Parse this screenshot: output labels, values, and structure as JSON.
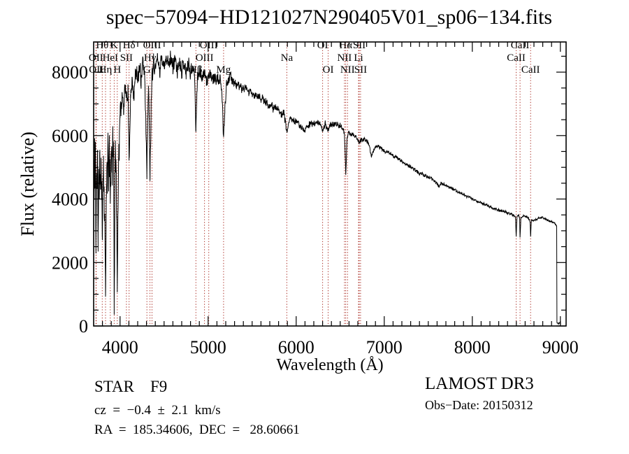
{
  "figure": {
    "title": "spec−57094−HD121027N290405V01_sp06−134.fits",
    "footer_left": {
      "class_line": "STAR    F9",
      "cz_line": "cz  =  −0.4  ±  2.1  km/s",
      "radec_line": "RA  =  185.34606,  DEC  =   28.60661"
    },
    "footer_right": {
      "survey_line": "LAMOST DR3",
      "obsdate_line": "Obs−Date: 20150312"
    }
  },
  "chart_data": {
    "type": "line",
    "title": "spec−57094−HD121027N290405V01_sp06−134.fits",
    "xlabel": "Wavelength (Å)",
    "ylabel": "Flux (relative)",
    "xlim": [
      3700,
      9065
    ],
    "ylim": [
      0,
      8950
    ],
    "x_major_ticks": [
      4000,
      5000,
      6000,
      7000,
      8000,
      9000
    ],
    "x_tick_labels": [
      "4000",
      "5000",
      "6000",
      "7000",
      "8000",
      "9000"
    ],
    "x_minor_step": 100,
    "y_major_ticks": [
      0,
      2000,
      4000,
      6000,
      8000
    ],
    "y_tick_labels": [
      "0",
      "2000",
      "4000",
      "6000",
      "8000"
    ],
    "y_minor_step": 500,
    "grid": false,
    "legend": null,
    "series_color": "#000000",
    "marker_line_color": "#aa2b22",
    "line_markers": [
      {
        "label": "OII",
        "wl": 3726,
        "row": 2
      },
      {
        "label": "OII",
        "wl": 3729,
        "row": 3
      },
      {
        "label": "Hθ",
        "wl": 3798,
        "row": 1
      },
      {
        "label": "Hη",
        "wl": 3835,
        "row": 3
      },
      {
        "label": "HeI",
        "wl": 3889,
        "row": 2
      },
      {
        "label": "K",
        "wl": 3933,
        "row": 1
      },
      {
        "label": "H",
        "wl": 3968,
        "row": 3
      },
      {
        "label": "SII",
        "wl": 4072,
        "row": 2
      },
      {
        "label": "Hδ",
        "wl": 4102,
        "row": 1
      },
      {
        "label": "G",
        "wl": 4305,
        "row": 3
      },
      {
        "label": "Hγ",
        "wl": 4340,
        "row": 2
      },
      {
        "label": "OIII",
        "wl": 4363,
        "row": 1
      },
      {
        "label": "Hβ",
        "wl": 4861,
        "row": 3
      },
      {
        "label": "OIII",
        "wl": 4959,
        "row": 2
      },
      {
        "label": "OIII",
        "wl": 5007,
        "row": 1
      },
      {
        "label": "Mg",
        "wl": 5175,
        "row": 3
      },
      {
        "label": "Na",
        "wl": 5894,
        "row": 2
      },
      {
        "label": "OI",
        "wl": 6300,
        "row": 1
      },
      {
        "label": "OI",
        "wl": 6363,
        "row": 3
      },
      {
        "label": "NII",
        "wl": 6548,
        "row": 2
      },
      {
        "label": "Hα",
        "wl": 6563,
        "row": 1
      },
      {
        "label": "NII",
        "wl": 6583,
        "row": 3
      },
      {
        "label": "Li",
        "wl": 6708,
        "row": 2
      },
      {
        "label": "SII",
        "wl": 6716,
        "row": 1
      },
      {
        "label": "SII",
        "wl": 6731,
        "row": 3
      },
      {
        "label": "CaII",
        "wl": 8498,
        "row": 2
      },
      {
        "label": "CaII",
        "wl": 8542,
        "row": 1
      },
      {
        "label": "CaII",
        "wl": 8662,
        "row": 3
      }
    ],
    "spectrum": {
      "noise_seed": 11,
      "sample_step_angstrom": 2.2,
      "noise_segments": [
        [
          3700,
          4000,
          850
        ],
        [
          4000,
          4380,
          420
        ],
        [
          4380,
          4900,
          300
        ],
        [
          4900,
          5300,
          230
        ],
        [
          5300,
          5900,
          170
        ],
        [
          5900,
          6560,
          110
        ],
        [
          6560,
          6900,
          90
        ],
        [
          6900,
          7600,
          70
        ],
        [
          7600,
          8480,
          55
        ],
        [
          8480,
          8958,
          42
        ],
        [
          8958,
          9003,
          22
        ]
      ],
      "anchors": [
        [
          3700,
          250
        ],
        [
          3702,
          5200
        ],
        [
          3706,
          3600
        ],
        [
          3711,
          5800
        ],
        [
          3716,
          4200
        ],
        [
          3721,
          5500
        ],
        [
          3726,
          2750
        ],
        [
          3733,
          5000
        ],
        [
          3739,
          4100
        ],
        [
          3745,
          5600
        ],
        [
          3751,
          2300
        ],
        [
          3757,
          4900
        ],
        [
          3764,
          4000
        ],
        [
          3771,
          5500
        ],
        [
          3778,
          4300
        ],
        [
          3785,
          5300
        ],
        [
          3792,
          4100
        ],
        [
          3798,
          3000
        ],
        [
          3805,
          4500
        ],
        [
          3812,
          5200
        ],
        [
          3820,
          4000
        ],
        [
          3828,
          2800
        ],
        [
          3835,
          900
        ],
        [
          3842,
          3600
        ],
        [
          3849,
          5200
        ],
        [
          3856,
          4500
        ],
        [
          3863,
          5400
        ],
        [
          3871,
          4600
        ],
        [
          3879,
          5500
        ],
        [
          3885,
          4700
        ],
        [
          3889,
          3700
        ],
        [
          3896,
          5100
        ],
        [
          3904,
          5700
        ],
        [
          3912,
          4800
        ],
        [
          3919,
          5900
        ],
        [
          3926,
          5200
        ],
        [
          3930,
          3800
        ],
        [
          3933,
          650
        ],
        [
          3938,
          2600
        ],
        [
          3944,
          4800
        ],
        [
          3950,
          5500
        ],
        [
          3957,
          4900
        ],
        [
          3962,
          3700
        ],
        [
          3968,
          1150
        ],
        [
          3975,
          3300
        ],
        [
          3983,
          5300
        ],
        [
          3991,
          6000
        ],
        [
          4000,
          6700
        ],
        [
          4020,
          7200
        ],
        [
          4040,
          6900
        ],
        [
          4060,
          7500
        ],
        [
          4075,
          7000
        ],
        [
          4090,
          7600
        ],
        [
          4102,
          5250
        ],
        [
          4118,
          7100
        ],
        [
          4140,
          7800
        ],
        [
          4160,
          7300
        ],
        [
          4180,
          8100
        ],
        [
          4200,
          7600
        ],
        [
          4220,
          8200
        ],
        [
          4240,
          7800
        ],
        [
          4260,
          8300
        ],
        [
          4280,
          7900
        ],
        [
          4305,
          5000
        ],
        [
          4322,
          7700
        ],
        [
          4340,
          4900
        ],
        [
          4360,
          7900
        ],
        [
          4375,
          8300
        ],
        [
          4400,
          8100
        ],
        [
          4425,
          8500
        ],
        [
          4450,
          8000
        ],
        [
          4475,
          8550
        ],
        [
          4500,
          8150
        ],
        [
          4525,
          8600
        ],
        [
          4550,
          8200
        ],
        [
          4575,
          8500
        ],
        [
          4600,
          8100
        ],
        [
          4625,
          8450
        ],
        [
          4650,
          8000
        ],
        [
          4675,
          8400
        ],
        [
          4700,
          8050
        ],
        [
          4725,
          8350
        ],
        [
          4750,
          7950
        ],
        [
          4775,
          8300
        ],
        [
          4800,
          8000
        ],
        [
          4825,
          8200
        ],
        [
          4845,
          7900
        ],
        [
          4861,
          6200
        ],
        [
          4880,
          7900
        ],
        [
          4905,
          8100
        ],
        [
          4930,
          7800
        ],
        [
          4955,
          8000
        ],
        [
          4980,
          7700
        ],
        [
          5007,
          7900
        ],
        [
          5030,
          7850
        ],
        [
          5060,
          7800
        ],
        [
          5100,
          7800
        ],
        [
          5140,
          7700
        ],
        [
          5160,
          7200
        ],
        [
          5175,
          5850
        ],
        [
          5190,
          6900
        ],
        [
          5210,
          7700
        ],
        [
          5240,
          7850
        ],
        [
          5270,
          7800
        ],
        [
          5320,
          7600
        ],
        [
          5380,
          7500
        ],
        [
          5430,
          7450
        ],
        [
          5500,
          7300
        ],
        [
          5590,
          7200
        ],
        [
          5680,
          7000
        ],
        [
          5750,
          6870
        ],
        [
          5820,
          6750
        ],
        [
          5860,
          6700
        ],
        [
          5894,
          6150
        ],
        [
          5930,
          6550
        ],
        [
          5990,
          6450
        ],
        [
          6050,
          6300
        ],
        [
          6090,
          6150
        ],
        [
          6150,
          6350
        ],
        [
          6210,
          6400
        ],
        [
          6270,
          6400
        ],
        [
          6300,
          6150
        ],
        [
          6330,
          6380
        ],
        [
          6363,
          6150
        ],
        [
          6395,
          6380
        ],
        [
          6430,
          6330
        ],
        [
          6470,
          6360
        ],
        [
          6510,
          6280
        ],
        [
          6548,
          6050
        ],
        [
          6563,
          4800
        ],
        [
          6578,
          5950
        ],
        [
          6600,
          6080
        ],
        [
          6640,
          6020
        ],
        [
          6680,
          5960
        ],
        [
          6708,
          5820
        ],
        [
          6716,
          5780
        ],
        [
          6731,
          5840
        ],
        [
          6780,
          5880
        ],
        [
          6820,
          5780
        ],
        [
          6858,
          5350
        ],
        [
          6880,
          5550
        ],
        [
          6905,
          5680
        ],
        [
          6950,
          5620
        ],
        [
          7000,
          5520
        ],
        [
          7050,
          5460
        ],
        [
          7100,
          5370
        ],
        [
          7150,
          5300
        ],
        [
          7200,
          5170
        ],
        [
          7250,
          5110
        ],
        [
          7300,
          5010
        ],
        [
          7350,
          4920
        ],
        [
          7400,
          4810
        ],
        [
          7450,
          4760
        ],
        [
          7500,
          4680
        ],
        [
          7550,
          4620
        ],
        [
          7600,
          4480
        ],
        [
          7620,
          4420
        ],
        [
          7650,
          4500
        ],
        [
          7700,
          4430
        ],
        [
          7750,
          4360
        ],
        [
          7800,
          4290
        ],
        [
          7850,
          4210
        ],
        [
          7900,
          4130
        ],
        [
          7950,
          4070
        ],
        [
          8000,
          4010
        ],
        [
          8060,
          3930
        ],
        [
          8120,
          3850
        ],
        [
          8180,
          3790
        ],
        [
          8240,
          3710
        ],
        [
          8300,
          3650
        ],
        [
          8360,
          3620
        ],
        [
          8420,
          3540
        ],
        [
          8460,
          3500
        ],
        [
          8490,
          3430
        ],
        [
          8498,
          2830
        ],
        [
          8508,
          3450
        ],
        [
          8525,
          3480
        ],
        [
          8538,
          3350
        ],
        [
          8542,
          2790
        ],
        [
          8552,
          3420
        ],
        [
          8580,
          3480
        ],
        [
          8610,
          3450
        ],
        [
          8640,
          3380
        ],
        [
          8656,
          3300
        ],
        [
          8662,
          2830
        ],
        [
          8672,
          3350
        ],
        [
          8700,
          3320
        ],
        [
          8730,
          3360
        ],
        [
          8760,
          3400
        ],
        [
          8790,
          3420
        ],
        [
          8820,
          3380
        ],
        [
          8850,
          3340
        ],
        [
          8880,
          3300
        ],
        [
          8910,
          3270
        ],
        [
          8935,
          3240
        ],
        [
          8950,
          3200
        ],
        [
          8958,
          3150
        ],
        [
          8961,
          120
        ],
        [
          8975,
          60
        ],
        [
          8990,
          90
        ],
        [
          9000,
          160
        ],
        [
          9003,
          40
        ]
      ]
    }
  }
}
